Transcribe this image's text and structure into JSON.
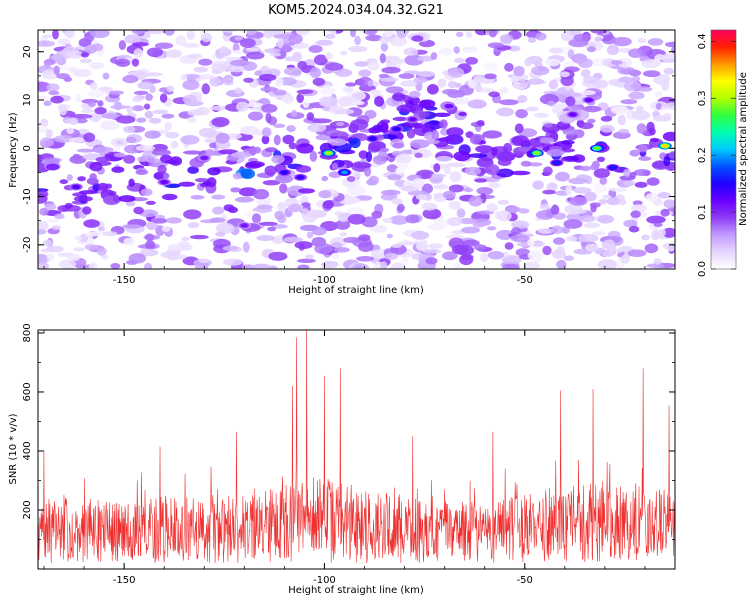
{
  "title": "KOM5.2024.034.04.32.G21",
  "chart_data": [
    {
      "type": "heatmap",
      "xlabel": "Height of straight line (km)",
      "ylabel": "Frequency (Hz)",
      "xlim": [
        -171.5,
        -12.5
      ],
      "ylim": [
        -25,
        24.5
      ],
      "xticks": [
        -150,
        -100,
        -50
      ],
      "yticks": [
        -20,
        -10,
        0,
        10,
        20
      ],
      "colorbar": {
        "label": "Normalized spectral amplitude",
        "range": [
          0.0,
          0.42
        ],
        "ticks": [
          "0.0",
          "0.1",
          "0.2",
          "0.3",
          "0.4"
        ],
        "tick_values": [
          0.0,
          0.1,
          0.2,
          0.3,
          0.4
        ],
        "colors": [
          "#ffffff",
          "#e6d6ff",
          "#c29cff",
          "#8f3cf5",
          "#6a00ff",
          "#2000ff",
          "#0050ff",
          "#00c8ff",
          "#00ffb0",
          "#30ff40",
          "#b0ff00",
          "#ffff00",
          "#ff9900",
          "#ff2000",
          "#ff0060"
        ]
      },
      "hotspots": [
        {
          "x": -99,
          "y": -1,
          "amp": 0.3
        },
        {
          "x": -95,
          "y": -5,
          "amp": 0.2
        },
        {
          "x": -88,
          "y": 2,
          "amp": 0.15
        },
        {
          "x": -82,
          "y": 4,
          "amp": 0.15
        },
        {
          "x": -78,
          "y": 6,
          "amp": 0.12
        },
        {
          "x": -110,
          "y": -5,
          "amp": 0.15
        },
        {
          "x": -106,
          "y": -6,
          "amp": 0.14
        },
        {
          "x": -47,
          "y": -1,
          "amp": 0.29
        },
        {
          "x": -42,
          "y": -3,
          "amp": 0.16
        },
        {
          "x": -32,
          "y": 0,
          "amp": 0.28
        },
        {
          "x": -28,
          "y": -4,
          "amp": 0.16
        },
        {
          "x": -15,
          "y": 0.5,
          "amp": 0.34
        },
        {
          "x": -34,
          "y": 10,
          "amp": 0.12
        },
        {
          "x": -38,
          "y": 7,
          "amp": 0.12
        },
        {
          "x": -162,
          "y": -8,
          "amp": 0.13
        },
        {
          "x": -140,
          "y": -7,
          "amp": 0.12
        },
        {
          "x": -120,
          "y": -16,
          "amp": 0.11
        },
        {
          "x": -130,
          "y": -2,
          "amp": 0.11
        }
      ]
    },
    {
      "type": "line",
      "xlabel": "Height of straight line (km)",
      "ylabel": "SNR (10 * v/v)",
      "xlim": [
        -171.5,
        -12.5
      ],
      "ylim": [
        0,
        810
      ],
      "xticks": [
        -150,
        -100,
        -50
      ],
      "yticks": [
        200,
        400,
        600,
        800
      ],
      "color": "#ef2f2f",
      "peaks": [
        {
          "x": -104.5,
          "y": 810
        },
        {
          "x": -107,
          "y": 785
        },
        {
          "x": -96,
          "y": 680
        },
        {
          "x": -100,
          "y": 655
        },
        {
          "x": -108,
          "y": 620
        },
        {
          "x": -20.5,
          "y": 680
        },
        {
          "x": -33,
          "y": 610
        },
        {
          "x": -41,
          "y": 605
        },
        {
          "x": -14,
          "y": 555
        },
        {
          "x": -122,
          "y": 465
        },
        {
          "x": -141,
          "y": 415
        },
        {
          "x": -170,
          "y": 400
        },
        {
          "x": -58,
          "y": 465
        },
        {
          "x": -78,
          "y": 450
        }
      ],
      "envelope": [
        {
          "x": -171.5,
          "y": 240
        },
        {
          "x": -160,
          "y": 250
        },
        {
          "x": -150,
          "y": 230
        },
        {
          "x": -140,
          "y": 255
        },
        {
          "x": -130,
          "y": 245
        },
        {
          "x": -120,
          "y": 260
        },
        {
          "x": -112,
          "y": 290
        },
        {
          "x": -104,
          "y": 330
        },
        {
          "x": -96,
          "y": 310
        },
        {
          "x": -88,
          "y": 280
        },
        {
          "x": -78,
          "y": 250
        },
        {
          "x": -68,
          "y": 230
        },
        {
          "x": -58,
          "y": 240
        },
        {
          "x": -50,
          "y": 275
        },
        {
          "x": -40,
          "y": 305
        },
        {
          "x": -30,
          "y": 315
        },
        {
          "x": -20,
          "y": 300
        },
        {
          "x": -12.5,
          "y": 270
        }
      ]
    }
  ]
}
